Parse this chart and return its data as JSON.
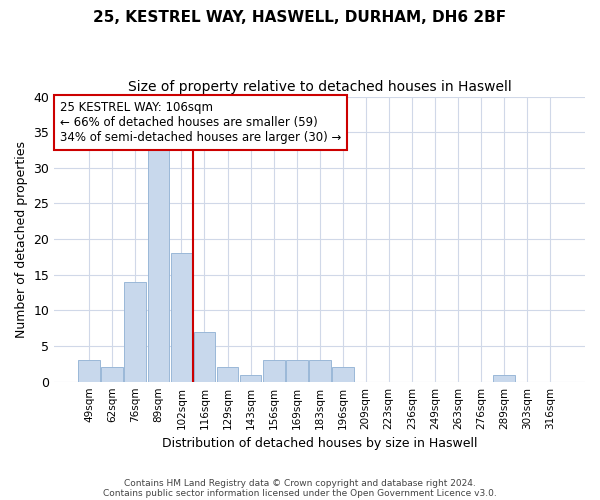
{
  "title1": "25, KESTREL WAY, HASWELL, DURHAM, DH6 2BF",
  "title2": "Size of property relative to detached houses in Haswell",
  "xlabel": "Distribution of detached houses by size in Haswell",
  "ylabel": "Number of detached properties",
  "categories": [
    "49sqm",
    "62sqm",
    "76sqm",
    "89sqm",
    "102sqm",
    "116sqm",
    "129sqm",
    "143sqm",
    "156sqm",
    "169sqm",
    "183sqm",
    "196sqm",
    "209sqm",
    "223sqm",
    "236sqm",
    "249sqm",
    "263sqm",
    "276sqm",
    "289sqm",
    "303sqm",
    "316sqm"
  ],
  "values": [
    3,
    2,
    14,
    33,
    18,
    7,
    2,
    1,
    3,
    3,
    3,
    2,
    0,
    0,
    0,
    0,
    0,
    0,
    1,
    0,
    0
  ],
  "bar_color": "#c8d8ec",
  "bar_edgecolor": "#9ab8d8",
  "ylim": [
    0,
    40
  ],
  "yticks": [
    0,
    5,
    10,
    15,
    20,
    25,
    30,
    35,
    40
  ],
  "vline_color": "#cc0000",
  "annotation_line1": "25 KESTREL WAY: 106sqm",
  "annotation_line2": "← 66% of detached houses are smaller (59)",
  "annotation_line3": "34% of semi-detached houses are larger (30) →",
  "annotation_box_color": "#cc0000",
  "footer1": "Contains HM Land Registry data © Crown copyright and database right 2024.",
  "footer2": "Contains public sector information licensed under the Open Government Licence v3.0.",
  "background_color": "#ffffff",
  "grid_color": "#d0d8e8",
  "title1_fontsize": 11,
  "title2_fontsize": 10
}
